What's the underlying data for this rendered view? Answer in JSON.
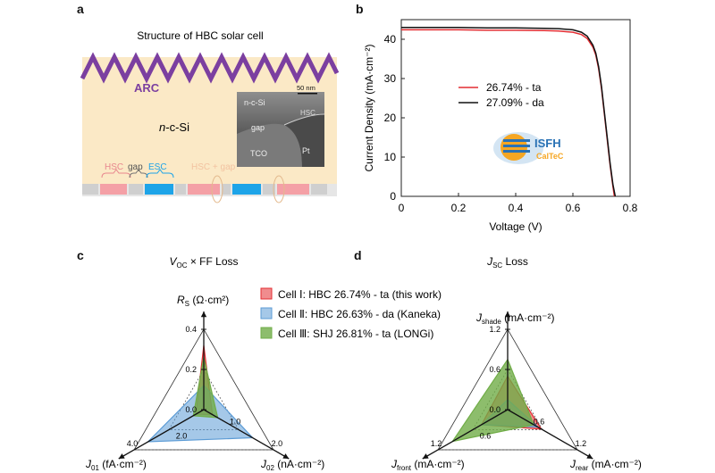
{
  "panels": {
    "a": "a",
    "b": "b",
    "c": "c",
    "d": "d"
  },
  "panel_a": {
    "title": "Structure of HBC solar cell",
    "arc_label": "ARC",
    "bulk_label_italic": "n",
    "bulk_label_rest": "-c-Si",
    "inset": {
      "top_label": "n-c-Si",
      "scale_bar": "50 nm",
      "hsc": "HSC",
      "gap": "gap",
      "tco": "TCO",
      "pt": "Pt"
    },
    "bottom_labels": {
      "hsc": "HSC",
      "gap": "gap",
      "esc": "ESC",
      "hsc_gap": "HSC + gap"
    },
    "colors": {
      "background": "#fbe9c6",
      "arc": "#7b3fa0",
      "hsc": "#f4a0a6",
      "esc": "#1ea4e8",
      "contact": "#cfcfcf"
    }
  },
  "panel_b": {
    "logo_text": "ISFH",
    "logo_sub": "CalTeC",
    "chart_data": {
      "type": "line",
      "xlabel": "Voltage (V)",
      "ylabel": "Current Density (mA·cm⁻²)",
      "xlim": [
        0,
        0.8
      ],
      "ylim": [
        0,
        45
      ],
      "xticks": [
        "0",
        "0.2",
        "0.4",
        "0.6",
        "0.8"
      ],
      "yticks": [
        "0",
        "10",
        "20",
        "30",
        "40"
      ],
      "series": [
        {
          "name": "26.74% - ta",
          "color": "#e32d32",
          "x": [
            0,
            0.1,
            0.2,
            0.3,
            0.4,
            0.5,
            0.55,
            0.6,
            0.63,
            0.65,
            0.67,
            0.68,
            0.69,
            0.7,
            0.71,
            0.72,
            0.73,
            0.74,
            0.745
          ],
          "y": [
            42.4,
            42.4,
            42.4,
            42.3,
            42.3,
            42.2,
            42.1,
            41.8,
            41.2,
            40.2,
            38.0,
            36.0,
            32.5,
            27.5,
            21.0,
            14.5,
            8.0,
            2.5,
            0
          ]
        },
        {
          "name": "27.09% - da",
          "color": "#111111",
          "x": [
            0,
            0.1,
            0.2,
            0.3,
            0.4,
            0.5,
            0.55,
            0.6,
            0.63,
            0.65,
            0.67,
            0.68,
            0.69,
            0.7,
            0.71,
            0.72,
            0.73,
            0.74,
            0.748
          ],
          "y": [
            43.0,
            43.0,
            43.0,
            42.9,
            42.9,
            42.8,
            42.7,
            42.4,
            41.8,
            40.8,
            38.5,
            36.5,
            33.0,
            28.0,
            21.5,
            15.0,
            8.5,
            3.0,
            0
          ]
        }
      ]
    }
  },
  "panel_c": {
    "title_v": "V",
    "title_sub": "OC",
    "title_rest": "× FF Loss",
    "axes": {
      "top": {
        "main": "R",
        "sub": "S",
        "unit": " (Ω·cm²)"
      },
      "left": {
        "main": "J",
        "sub": "01",
        "unit": " (fA·cm⁻²)"
      },
      "right": {
        "main": "J",
        "sub": "02",
        "unit": " (nA·cm⁻²)"
      }
    },
    "ticks": {
      "top": [
        "0.4",
        "0.2",
        "0.0"
      ],
      "left": [
        "4.0",
        "2.0"
      ],
      "right": [
        "1.0",
        "2.0"
      ]
    },
    "chart_data": {
      "type": "radar",
      "title": "VOC × FF Loss",
      "axes": [
        "RS (Ω·cm²)",
        "J01 (fA·cm⁻²)",
        "J02 (nA·cm⁻²)"
      ],
      "ranges": [
        [
          0,
          0.4
        ],
        [
          0,
          4.0
        ],
        [
          0,
          2.0
        ]
      ],
      "series": [
        {
          "name": "Cell Ⅰ: HBC 26.74% - ta (this work)",
          "color": "#e32d32",
          "values": [
            0.32,
            0.45,
            0.25
          ]
        },
        {
          "name": "Cell Ⅱ: HBC 26.63% - da (Kaneka)",
          "color": "#5b9bd5",
          "values": [
            0.12,
            3.2,
            1.4
          ]
        },
        {
          "name": "Cell Ⅲ: SHJ 26.81% - ta (LONGi)",
          "color": "#70ad47",
          "values": [
            0.26,
            0.6,
            0.4
          ]
        }
      ]
    }
  },
  "legend": [
    {
      "prefix": "Cell ",
      "roman": "Ⅰ",
      "text": ": HBC 26.74% - ta (this work)",
      "color": "#e32d32",
      "fill": "rgba(227,45,50,0.55)"
    },
    {
      "prefix": "Cell ",
      "roman": "Ⅱ",
      "text": ": HBC 26.63% - da (Kaneka)",
      "color": "#5b9bd5",
      "fill": "rgba(91,155,213,0.55)"
    },
    {
      "prefix": "Cell ",
      "roman": "Ⅲ",
      "text": ": SHJ 26.81% - ta (LONGi)",
      "color": "#70ad47",
      "fill": "rgba(112,173,71,0.8)"
    }
  ],
  "panel_d": {
    "title_j": "J",
    "title_sub": "SC",
    "title_rest": " Loss",
    "axes": {
      "top": {
        "main": "J",
        "sub": "shade",
        "unit": " (mA·cm⁻²)"
      },
      "left": {
        "main": "J",
        "sub": "front",
        "unit": " (mA·cm⁻²)"
      },
      "right": {
        "main": "J",
        "sub": "rear",
        "unit": " (mA·cm⁻²)"
      }
    },
    "ticks": {
      "top": [
        "1.2",
        "0.6",
        "0.0"
      ],
      "left": [
        "1.2",
        "0.6"
      ],
      "right": [
        "0.6",
        "1.2"
      ]
    },
    "chart_data": {
      "type": "radar",
      "title": "JSC Loss",
      "axes": [
        "Jshade (mA·cm⁻²)",
        "Jfront (mA·cm⁻²)",
        "Jrear (mA·cm⁻²)"
      ],
      "ranges": [
        [
          0,
          1.2
        ],
        [
          0,
          1.2
        ],
        [
          0,
          1.2
        ]
      ],
      "series": [
        {
          "name": "Cell Ⅰ: HBC 26.74% - ta (this work)",
          "color": "#e32d32",
          "values": [
            0.5,
            0.45,
            0.58
          ]
        },
        {
          "name": "Cell Ⅱ: HBC 26.63% - da (Kaneka)",
          "color": "#5b9bd5",
          "values": [
            0.15,
            0.45,
            0.52
          ]
        },
        {
          "name": "Cell Ⅲ: SHJ 26.81% - ta (LONGi)",
          "color": "#70ad47",
          "values": [
            0.75,
            0.95,
            0.45
          ]
        }
      ]
    }
  }
}
